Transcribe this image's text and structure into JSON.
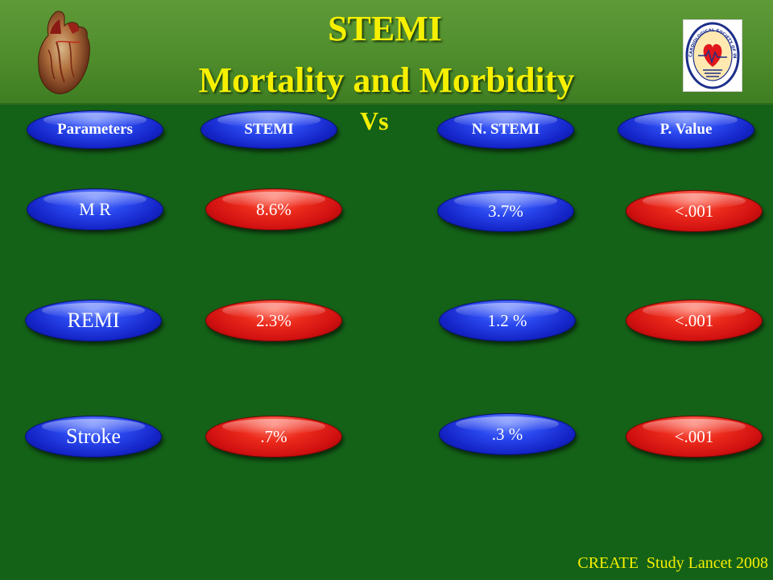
{
  "title": {
    "line1": "STEMI",
    "line2": "Mortality and Morbidity",
    "vs": "Vs"
  },
  "logo": {
    "ring_text": "CARDIOLOGICAL SOCIETY OF INDIA"
  },
  "columns": [
    "Parameters",
    "STEMI",
    "N. STEMI",
    "P. Value"
  ],
  "rows": [
    {
      "parameter": "M R",
      "stemi": "8.6%",
      "nstemi": "3.7%",
      "pvalue": "<.001"
    },
    {
      "parameter": "REMI",
      "stemi": "2.3%",
      "nstemi": "1.2 %",
      "pvalue": "<.001"
    },
    {
      "parameter": "Stroke",
      "stemi": ".7%",
      "nstemi": ".3 %",
      "pvalue": "<.001"
    }
  ],
  "footer": "CREATE  Study Lancet 2008",
  "colors": {
    "background": "#146118",
    "title": "#f6f000",
    "pill_blue": "#1424c6",
    "pill_red": "#cf1010"
  }
}
